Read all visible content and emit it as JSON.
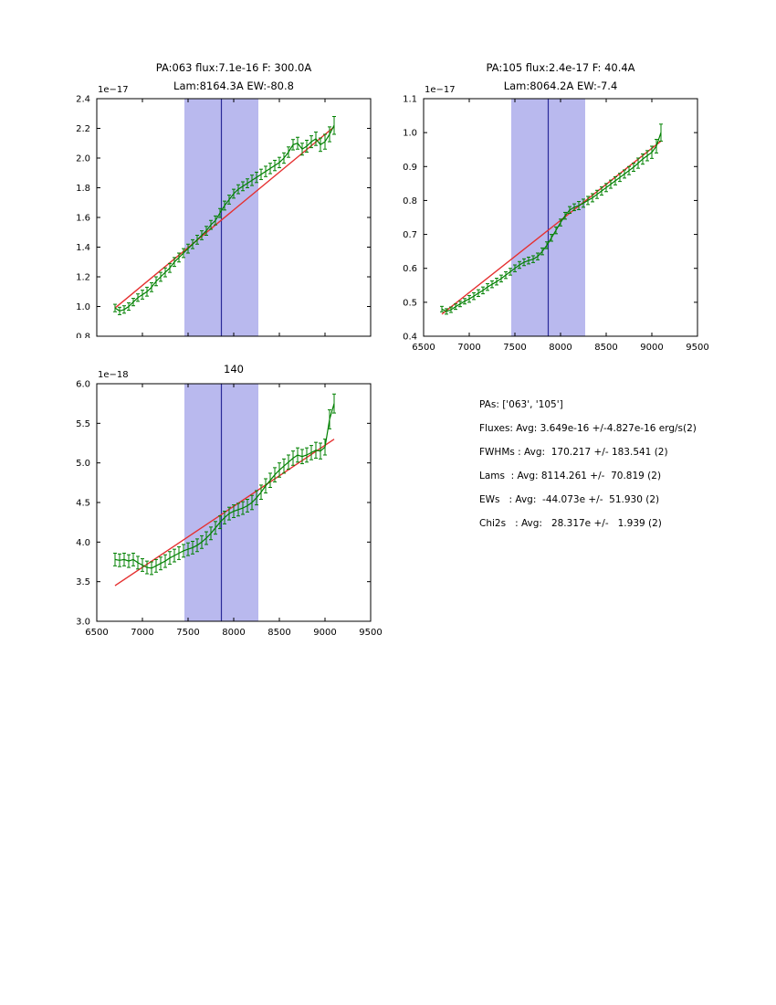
{
  "colors": {
    "data": "#008000",
    "fit": "#e53030",
    "band": "#b9b9ee",
    "vline": "#2a2a99",
    "frame": "#000000",
    "background": "#ffffff"
  },
  "stats_panel": {
    "lines": [
      "PAs: ['063', '105']",
      "Fluxes: Avg: 3.649e-16 +/-4.827e-16 erg/s(2)",
      "FWHMs : Avg:  170.217 +/- 183.541 (2)",
      "Lams  : Avg: 8114.261 +/-  70.819 (2)",
      "EWs   : Avg:  -44.073e +/-  51.930 (2)",
      "Chi2s   : Avg:   28.317e +/-   1.939 (2)"
    ]
  },
  "chart_data": [
    {
      "type": "line",
      "title_lines": [
        "PA:063 flux:7.1e-16 F: 300.0A",
        "Lam:8164.3A EW:-80.8"
      ],
      "y_offset_label": "1e−17",
      "xlim": [
        6500,
        9500
      ],
      "ylim": [
        0.8,
        2.4
      ],
      "xticks": [
        "6500",
        "7000",
        "7500",
        "8000",
        "8500",
        "9000",
        "9500"
      ],
      "yticks": [
        "0.8",
        "1.0",
        "1.2",
        "1.4",
        "1.6",
        "1.8",
        "2.0",
        "2.2",
        "2.4"
      ],
      "band": [
        7460,
        8270
      ],
      "vline": 7865,
      "fit": {
        "x": [
          6700,
          9100
        ],
        "y": [
          0.99,
          2.21
        ]
      },
      "x": [
        6700,
        6750,
        6800,
        6850,
        6900,
        6950,
        7000,
        7050,
        7100,
        7150,
        7200,
        7250,
        7300,
        7350,
        7400,
        7450,
        7500,
        7550,
        7600,
        7650,
        7700,
        7750,
        7800,
        7850,
        7900,
        7950,
        8000,
        8050,
        8100,
        8150,
        8200,
        8250,
        8300,
        8350,
        8400,
        8450,
        8500,
        8550,
        8600,
        8650,
        8700,
        8750,
        8800,
        8850,
        8900,
        8950,
        9000,
        9050,
        9100
      ],
      "y": [
        0.99,
        0.97,
        0.98,
        1.0,
        1.03,
        1.06,
        1.08,
        1.1,
        1.13,
        1.17,
        1.2,
        1.23,
        1.26,
        1.3,
        1.33,
        1.36,
        1.39,
        1.42,
        1.45,
        1.48,
        1.51,
        1.55,
        1.58,
        1.63,
        1.68,
        1.72,
        1.76,
        1.79,
        1.81,
        1.83,
        1.85,
        1.87,
        1.89,
        1.91,
        1.93,
        1.95,
        1.97,
        2.0,
        2.04,
        2.09,
        2.1,
        2.06,
        2.08,
        2.11,
        2.13,
        2.09,
        2.11,
        2.16,
        2.22
      ],
      "yerr": [
        0.025,
        0.025,
        0.025,
        0.025,
        0.025,
        0.025,
        0.03,
        0.03,
        0.03,
        0.03,
        0.03,
        0.03,
        0.03,
        0.03,
        0.03,
        0.03,
        0.03,
        0.03,
        0.03,
        0.03,
        0.03,
        0.03,
        0.03,
        0.03,
        0.03,
        0.03,
        0.03,
        0.03,
        0.03,
        0.03,
        0.035,
        0.035,
        0.035,
        0.035,
        0.035,
        0.035,
        0.035,
        0.035,
        0.035,
        0.035,
        0.04,
        0.04,
        0.04,
        0.04,
        0.045,
        0.045,
        0.05,
        0.05,
        0.06
      ]
    },
    {
      "type": "line",
      "title_lines": [
        "PA:105 flux:2.4e-17 F: 40.4A",
        "Lam:8064.2A EW:-7.4"
      ],
      "y_offset_label": "1e−17",
      "xlim": [
        6500,
        9500
      ],
      "ylim": [
        0.4,
        1.1
      ],
      "xticks": [
        "6500",
        "7000",
        "7500",
        "8000",
        "8500",
        "9000",
        "9500"
      ],
      "yticks": [
        "0.4",
        "0.5",
        "0.6",
        "0.7",
        "0.8",
        "0.9",
        "1.0",
        "1.1"
      ],
      "band": [
        7460,
        8270
      ],
      "vline": 7865,
      "fit": {
        "x": [
          6700,
          9100
        ],
        "y": [
          0.465,
          0.975
        ]
      },
      "x": [
        6700,
        6750,
        6800,
        6850,
        6900,
        6950,
        7000,
        7050,
        7100,
        7150,
        7200,
        7250,
        7300,
        7350,
        7400,
        7450,
        7500,
        7550,
        7600,
        7650,
        7700,
        7750,
        7800,
        7850,
        7900,
        7950,
        8000,
        8050,
        8100,
        8150,
        8200,
        8250,
        8300,
        8350,
        8400,
        8450,
        8500,
        8550,
        8600,
        8650,
        8700,
        8750,
        8800,
        8850,
        8900,
        8950,
        9000,
        9050,
        9100
      ],
      "y": [
        0.48,
        0.473,
        0.478,
        0.487,
        0.495,
        0.503,
        0.51,
        0.518,
        0.527,
        0.535,
        0.545,
        0.553,
        0.561,
        0.57,
        0.58,
        0.59,
        0.6,
        0.61,
        0.618,
        0.623,
        0.627,
        0.635,
        0.65,
        0.668,
        0.69,
        0.712,
        0.735,
        0.755,
        0.772,
        0.78,
        0.785,
        0.792,
        0.8,
        0.808,
        0.818,
        0.828,
        0.838,
        0.848,
        0.858,
        0.868,
        0.878,
        0.888,
        0.898,
        0.91,
        0.922,
        0.932,
        0.942,
        0.96,
        1.0
      ],
      "yerr": [
        0.008,
        0.008,
        0.008,
        0.008,
        0.008,
        0.008,
        0.01,
        0.01,
        0.01,
        0.01,
        0.01,
        0.01,
        0.01,
        0.01,
        0.01,
        0.01,
        0.01,
        0.01,
        0.01,
        0.01,
        0.01,
        0.01,
        0.01,
        0.01,
        0.01,
        0.01,
        0.01,
        0.01,
        0.01,
        0.01,
        0.012,
        0.012,
        0.012,
        0.012,
        0.012,
        0.012,
        0.012,
        0.012,
        0.012,
        0.012,
        0.012,
        0.012,
        0.012,
        0.015,
        0.015,
        0.015,
        0.018,
        0.02,
        0.025
      ]
    },
    {
      "type": "line",
      "title_lines": [
        "140"
      ],
      "y_offset_label": "1e−18",
      "xlim": [
        6500,
        9500
      ],
      "ylim": [
        3.0,
        6.0
      ],
      "xticks": [
        "6500",
        "7000",
        "7500",
        "8000",
        "8500",
        "9000",
        "9500"
      ],
      "yticks": [
        "3.0",
        "3.5",
        "4.0",
        "4.5",
        "5.0",
        "5.5",
        "6.0"
      ],
      "band": [
        7460,
        8270
      ],
      "vline": 7865,
      "fit": {
        "x": [
          6700,
          9100
        ],
        "y": [
          3.45,
          5.3
        ]
      },
      "x": [
        6700,
        6750,
        6800,
        6850,
        6900,
        6950,
        7000,
        7050,
        7100,
        7150,
        7200,
        7250,
        7300,
        7350,
        7400,
        7450,
        7500,
        7550,
        7600,
        7650,
        7700,
        7750,
        7800,
        7850,
        7900,
        7950,
        8000,
        8050,
        8100,
        8150,
        8200,
        8250,
        8300,
        8350,
        8400,
        8450,
        8500,
        8550,
        8600,
        8650,
        8700,
        8750,
        8800,
        8850,
        8900,
        8950,
        9000,
        9050,
        9100
      ],
      "y": [
        3.78,
        3.77,
        3.78,
        3.76,
        3.78,
        3.74,
        3.71,
        3.68,
        3.67,
        3.7,
        3.73,
        3.76,
        3.8,
        3.83,
        3.86,
        3.89,
        3.91,
        3.93,
        3.96,
        4.0,
        4.05,
        4.11,
        4.18,
        4.25,
        4.31,
        4.36,
        4.39,
        4.41,
        4.43,
        4.46,
        4.5,
        4.56,
        4.63,
        4.71,
        4.78,
        4.85,
        4.91,
        4.96,
        5.01,
        5.06,
        5.1,
        5.08,
        5.1,
        5.13,
        5.16,
        5.15,
        5.2,
        5.55,
        5.75
      ],
      "yerr": [
        0.08,
        0.08,
        0.08,
        0.08,
        0.08,
        0.08,
        0.08,
        0.08,
        0.08,
        0.08,
        0.08,
        0.08,
        0.08,
        0.08,
        0.08,
        0.08,
        0.08,
        0.08,
        0.08,
        0.08,
        0.08,
        0.08,
        0.08,
        0.08,
        0.08,
        0.08,
        0.08,
        0.08,
        0.08,
        0.08,
        0.09,
        0.09,
        0.09,
        0.09,
        0.09,
        0.09,
        0.09,
        0.09,
        0.09,
        0.09,
        0.09,
        0.09,
        0.09,
        0.09,
        0.1,
        0.1,
        0.1,
        0.12,
        0.12
      ]
    }
  ]
}
